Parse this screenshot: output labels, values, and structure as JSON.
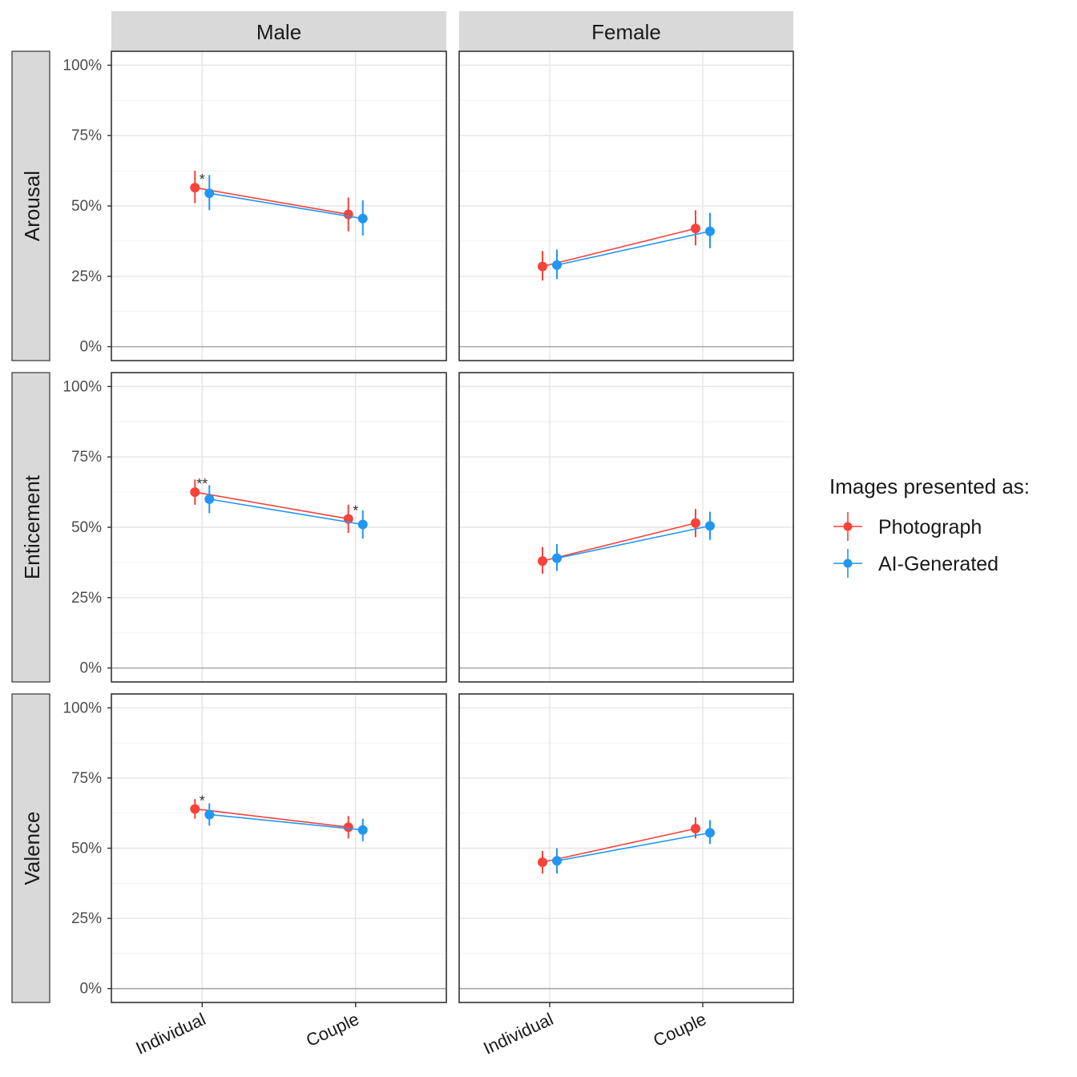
{
  "chart_data": {
    "type": "line",
    "chart_kind": "faceted point-range with connecting lines",
    "columns": [
      "Male",
      "Female"
    ],
    "rows": [
      "Arousal",
      "Enticement",
      "Valence"
    ],
    "categories": [
      "Individual",
      "Couple"
    ],
    "y_ticks": [
      "0%",
      "25%",
      "50%",
      "75%",
      "100%"
    ],
    "ylim": [
      0,
      100
    ],
    "grid": true,
    "legend": {
      "title": "Images presented as:",
      "placement": "right",
      "series": [
        {
          "name": "Photograph",
          "color": "#F8423A"
        },
        {
          "name": "AI-Generated",
          "color": "#2196F3"
        }
      ]
    },
    "panels": [
      {
        "row": "Arousal",
        "column": "Male",
        "series": [
          {
            "name": "Photograph",
            "values": [
              56.5,
              47.0
            ],
            "lower": [
              51.0,
              41.0
            ],
            "upper": [
              62.5,
              53.0
            ]
          },
          {
            "name": "AI-Generated",
            "values": [
              54.5,
              45.5
            ],
            "lower": [
              48.5,
              39.5
            ],
            "upper": [
              61.0,
              52.0
            ]
          }
        ],
        "annotations": [
          {
            "category": "Individual",
            "text": "*"
          }
        ]
      },
      {
        "row": "Arousal",
        "column": "Female",
        "series": [
          {
            "name": "Photograph",
            "values": [
              28.5,
              42.0
            ],
            "lower": [
              23.5,
              36.0
            ],
            "upper": [
              34.0,
              48.5
            ]
          },
          {
            "name": "AI-Generated",
            "values": [
              29.0,
              41.0
            ],
            "lower": [
              24.0,
              35.0
            ],
            "upper": [
              34.5,
              47.5
            ]
          }
        ],
        "annotations": []
      },
      {
        "row": "Enticement",
        "column": "Male",
        "series": [
          {
            "name": "Photograph",
            "values": [
              62.5,
              53.0
            ],
            "lower": [
              58.0,
              48.0
            ],
            "upper": [
              67.0,
              58.0
            ]
          },
          {
            "name": "AI-Generated",
            "values": [
              60.0,
              51.0
            ],
            "lower": [
              55.0,
              46.0
            ],
            "upper": [
              65.0,
              56.0
            ]
          }
        ],
        "annotations": [
          {
            "category": "Individual",
            "text": "**"
          },
          {
            "category": "Couple",
            "text": "*"
          }
        ]
      },
      {
        "row": "Enticement",
        "column": "Female",
        "series": [
          {
            "name": "Photograph",
            "values": [
              38.0,
              51.5
            ],
            "lower": [
              33.5,
              46.5
            ],
            "upper": [
              43.0,
              56.5
            ]
          },
          {
            "name": "AI-Generated",
            "values": [
              39.0,
              50.5
            ],
            "lower": [
              34.5,
              45.5
            ],
            "upper": [
              44.0,
              55.5
            ]
          }
        ],
        "annotations": []
      },
      {
        "row": "Valence",
        "column": "Male",
        "series": [
          {
            "name": "Photograph",
            "values": [
              64.0,
              57.5
            ],
            "lower": [
              60.5,
              53.5
            ],
            "upper": [
              67.5,
              61.5
            ]
          },
          {
            "name": "AI-Generated",
            "values": [
              62.0,
              56.5
            ],
            "lower": [
              58.0,
              52.5
            ],
            "upper": [
              66.0,
              60.5
            ]
          }
        ],
        "annotations": [
          {
            "category": "Individual",
            "text": "*"
          }
        ]
      },
      {
        "row": "Valence",
        "column": "Female",
        "series": [
          {
            "name": "Photograph",
            "values": [
              45.0,
              57.0
            ],
            "lower": [
              41.0,
              53.5
            ],
            "upper": [
              49.0,
              61.0
            ]
          },
          {
            "name": "AI-Generated",
            "values": [
              45.5,
              55.5
            ],
            "lower": [
              41.0,
              51.5
            ],
            "upper": [
              50.0,
              60.0
            ]
          }
        ],
        "annotations": []
      }
    ]
  }
}
